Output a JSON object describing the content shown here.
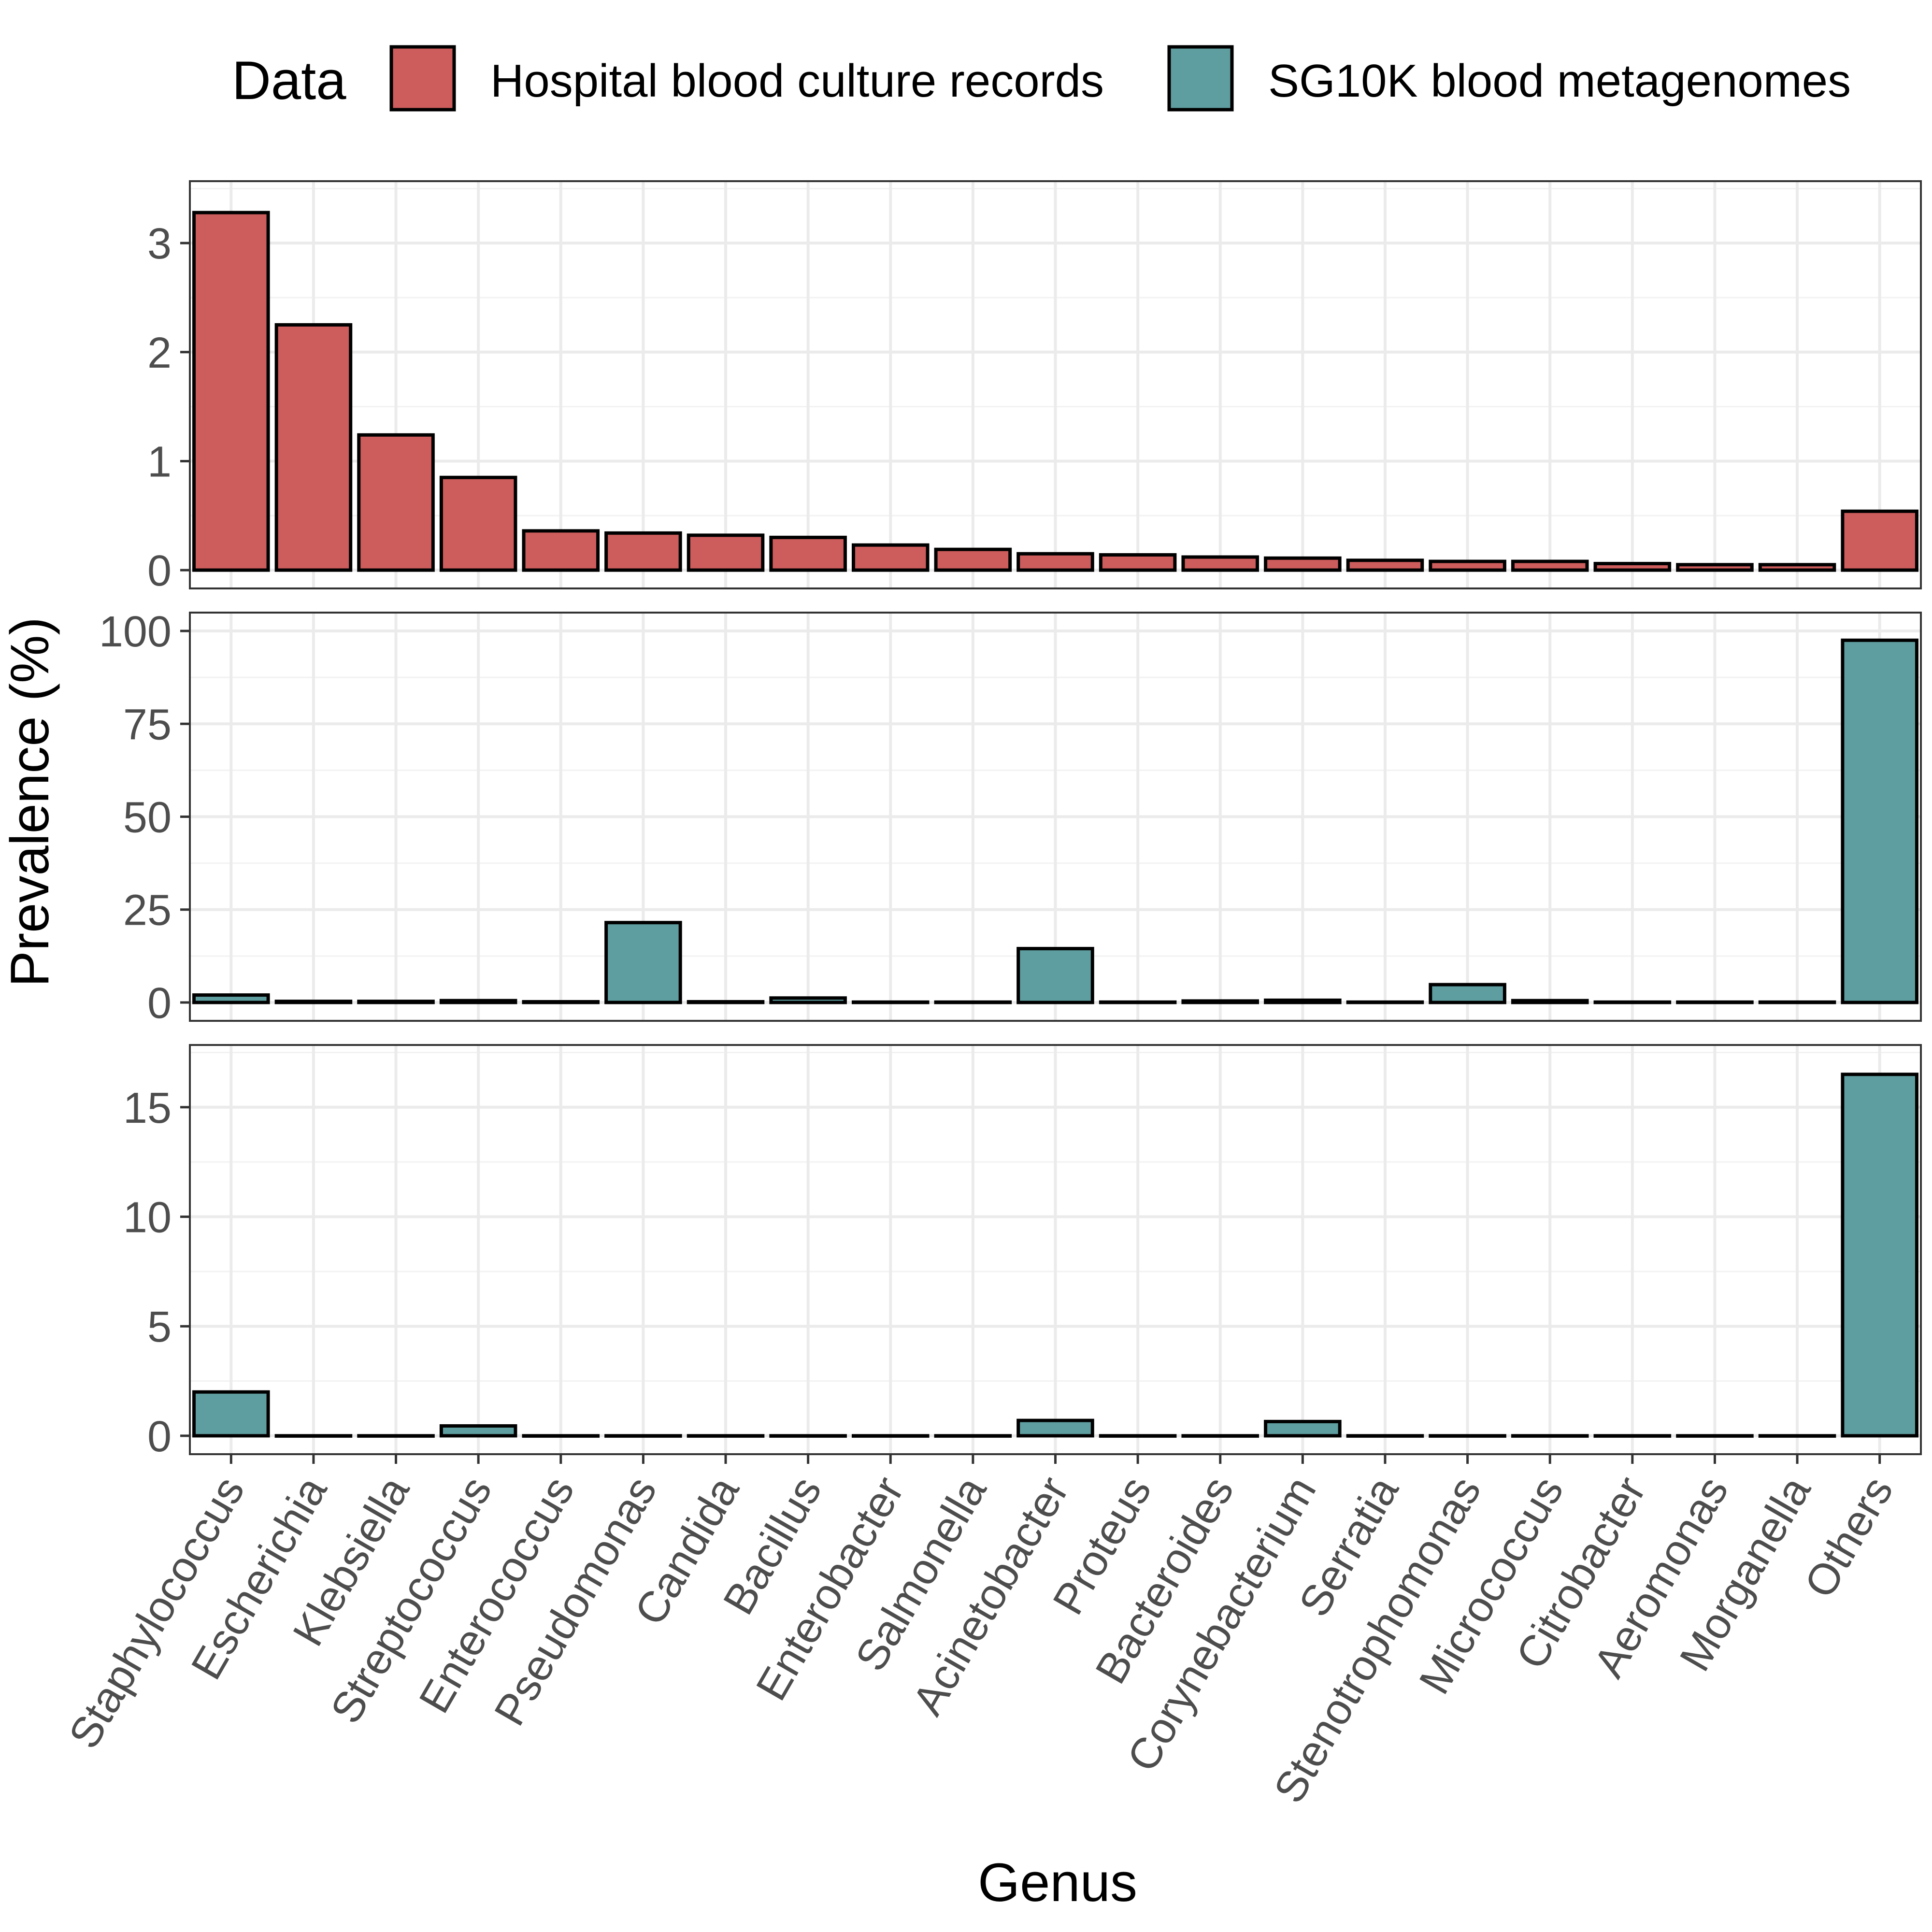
{
  "chart_data": {
    "type": "bar",
    "xlabel": "Genus",
    "ylabel": "Prevalence (%)",
    "grid": true,
    "legend": {
      "position": "top",
      "title": "Data",
      "entries": [
        {
          "name": "Hospital blood culture records",
          "color": "#CD5C5C"
        },
        {
          "name": "SG10K blood metagenomes",
          "color": "#5F9EA0"
        }
      ]
    },
    "categories": [
      "Staphylococcus",
      "Escherichia",
      "Klebsiella",
      "Streptococcus",
      "Enterococcus",
      "Pseudomonas",
      "Candida",
      "Bacillus",
      "Enterobacter",
      "Salmonella",
      "Acinetobacter",
      "Proteus",
      "Bacteroides",
      "Corynebacterium",
      "Serratia",
      "Stenotrophomonas",
      "Micrococcus",
      "Citrobacter",
      "Aeromonas",
      "Morganella",
      "Others"
    ],
    "panels": [
      {
        "series": "Hospital blood culture records",
        "color": "#CD5C5C",
        "ylim": [
          0,
          3.4
        ],
        "yticks": [
          0,
          1,
          2,
          3
        ],
        "values": [
          3.28,
          2.25,
          1.24,
          0.85,
          0.36,
          0.34,
          0.32,
          0.3,
          0.23,
          0.19,
          0.15,
          0.14,
          0.12,
          0.11,
          0.09,
          0.08,
          0.08,
          0.06,
          0.05,
          0.05,
          0.54
        ]
      },
      {
        "series": "SG10K blood metagenomes",
        "color": "#5F9EA0",
        "ylim": [
          0,
          100
        ],
        "yticks": [
          0,
          25,
          50,
          75,
          100
        ],
        "values": [
          2.0,
          0.3,
          0.3,
          0.5,
          0.2,
          21.5,
          0.2,
          1.2,
          0.1,
          0.1,
          14.5,
          0.1,
          0.4,
          0.6,
          0.1,
          4.8,
          0.5,
          0.1,
          0.1,
          0.1,
          97.5
        ]
      },
      {
        "series": "SG10K blood metagenomes",
        "color": "#5F9EA0",
        "ylim": [
          0,
          17
        ],
        "yticks": [
          0,
          5,
          10,
          15
        ],
        "values": [
          2.0,
          0,
          0,
          0.45,
          0,
          0,
          0,
          0,
          0,
          0,
          0.7,
          0,
          0,
          0.65,
          0,
          0,
          0,
          0,
          0,
          0,
          16.5
        ]
      }
    ]
  }
}
